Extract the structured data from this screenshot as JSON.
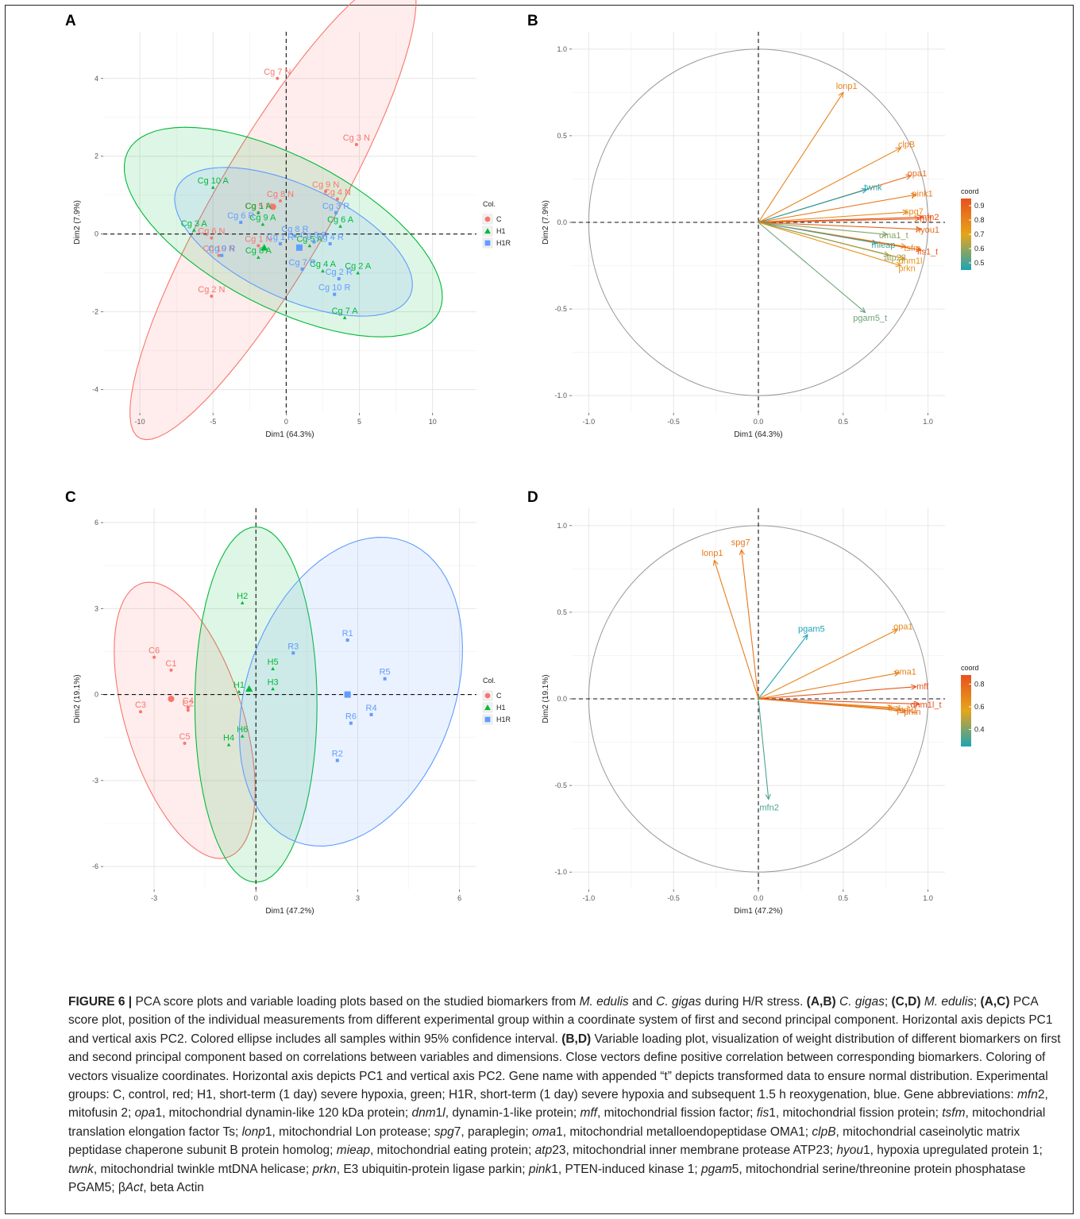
{
  "chart_data": [
    {
      "panel": "A",
      "type": "scatter",
      "xlabel": "Dim1 (64.3%)",
      "ylabel": "Dim2 (7.9%)",
      "xlim": [
        -12.5,
        13
      ],
      "ylim": [
        -4.6,
        5.2
      ],
      "xticks": [
        -10,
        -5,
        0,
        5,
        10
      ],
      "yticks": [
        -4,
        -2,
        0,
        2,
        4
      ],
      "grid": true,
      "legend": {
        "title": "Col.",
        "position": "right",
        "entries": [
          {
            "name": "C",
            "color": "#F8766D",
            "shape": "circle"
          },
          {
            "name": "H1",
            "color": "#00BA38",
            "shape": "triangle"
          },
          {
            "name": "H1R",
            "color": "#619CFF",
            "shape": "square"
          }
        ]
      },
      "series": [
        {
          "name": "C",
          "color": "#F8766D",
          "shape": "circle",
          "centroid": [
            -0.9,
            0.7
          ],
          "ellipse": {
            "cx": -0.9,
            "cy": 0.7,
            "rx": 11.2,
            "ry": 2.45,
            "angle": 30
          },
          "points": [
            {
              "label": "Cg 7 N",
              "x": -0.6,
              "y": 4.0
            },
            {
              "label": "Cg 3 N",
              "x": 4.8,
              "y": 2.3
            },
            {
              "label": "Cg 9 N",
              "x": 2.7,
              "y": 1.1
            },
            {
              "label": "Cg 8 N",
              "x": -0.4,
              "y": 0.85
            },
            {
              "label": "Cg 5 N",
              "x": -1.9,
              "y": 0.55
            },
            {
              "label": "Cg 4 N",
              "x": 3.5,
              "y": 0.9
            },
            {
              "label": "Cg 6 N",
              "x": -5.1,
              "y": -0.1
            },
            {
              "label": "Cg 1 N",
              "x": -1.9,
              "y": -0.3
            },
            {
              "label": "Cg 10 N",
              "x": -4.6,
              "y": -0.55
            },
            {
              "label": "Cg 2 N",
              "x": -5.1,
              "y": -1.6
            }
          ]
        },
        {
          "name": "H1",
          "color": "#00BA38",
          "shape": "triangle",
          "centroid": [
            -1.5,
            -0.35
          ],
          "ellipse": {
            "cx": -0.2,
            "cy": 0.05,
            "rx": 11.0,
            "ry": 2.1,
            "angle": -9
          },
          "points": [
            {
              "label": "Cg 10 A",
              "x": -5.0,
              "y": 1.2
            },
            {
              "label": "Cg 1 A",
              "x": -1.9,
              "y": 0.55
            },
            {
              "label": "Cg 3 A",
              "x": -6.3,
              "y": 0.1
            },
            {
              "label": "Cg 9 A",
              "x": -1.6,
              "y": 0.25
            },
            {
              "label": "Cg 8 A",
              "x": -1.9,
              "y": -0.6
            },
            {
              "label": "Cg 5 A",
              "x": 1.6,
              "y": -0.3
            },
            {
              "label": "Cg 6 A",
              "x": 3.7,
              "y": 0.2
            },
            {
              "label": "Cg 4 A",
              "x": 2.5,
              "y": -0.95
            },
            {
              "label": "Cg 2 A",
              "x": 4.9,
              "y": -1.0
            },
            {
              "label": "Cg 7 A",
              "x": 4.0,
              "y": -2.15
            }
          ]
        },
        {
          "name": "H1R",
          "color": "#619CFF",
          "shape": "square",
          "centroid": [
            0.9,
            -0.35
          ],
          "ellipse": {
            "cx": 0.5,
            "cy": -0.2,
            "rx": 8.2,
            "ry": 1.55,
            "angle": -8
          },
          "points": [
            {
              "label": "Cg 6 R",
              "x": -3.1,
              "y": 0.3
            },
            {
              "label": "Cg 8 R",
              "x": 0.6,
              "y": -0.05
            },
            {
              "label": "Cg 3 R",
              "x": 3.4,
              "y": 0.55
            },
            {
              "label": "Cg 9 R",
              "x": -4.4,
              "y": -0.55
            },
            {
              "label": "Cg 1 R",
              "x": -0.4,
              "y": -0.25
            },
            {
              "label": "Cg 5 R",
              "x": 1.9,
              "y": -0.2
            },
            {
              "label": "Cg 4 R",
              "x": 3.0,
              "y": -0.25
            },
            {
              "label": "Cg 7 R",
              "x": 1.1,
              "y": -0.9
            },
            {
              "label": "Cg 2 R",
              "x": 3.6,
              "y": -1.15
            },
            {
              "label": "Cg 10 R",
              "x": 3.3,
              "y": -1.55
            }
          ]
        }
      ]
    },
    {
      "panel": "B",
      "type": "line",
      "subtype": "variable-loading",
      "xlabel": "Dim1 (64.3%)",
      "ylabel": "Dim2 (7.9%)",
      "xlim": [
        -1.1,
        1.1
      ],
      "ylim": [
        -1.1,
        1.1
      ],
      "xticks": [
        -1.0,
        -0.5,
        0.0,
        0.5,
        1.0
      ],
      "yticks": [
        -1.0,
        -0.5,
        0.0,
        0.5,
        1.0
      ],
      "legend": {
        "title": "coord",
        "position": "right",
        "ticks": [
          0.9,
          0.8,
          0.7,
          0.6,
          0.5
        ],
        "range": [
          0.45,
          0.95
        ],
        "colors": [
          "#e8511e",
          "#e6a51a",
          "#1fa3b4"
        ]
      },
      "vectors": [
        {
          "label": "lonp1",
          "x": 0.5,
          "y": 0.75,
          "coord": 0.8
        },
        {
          "label": "clpB",
          "x": 0.84,
          "y": 0.43,
          "coord": 0.8
        },
        {
          "label": "opa1",
          "x": 0.9,
          "y": 0.27,
          "coord": 0.87
        },
        {
          "label": "twnk",
          "x": 0.64,
          "y": 0.19,
          "coord": 0.45
        },
        {
          "label": "pink1",
          "x": 0.93,
          "y": 0.16,
          "coord": 0.82
        },
        {
          "label": "spg7",
          "x": 0.88,
          "y": 0.06,
          "coord": 0.78
        },
        {
          "label": "mff",
          "x": 0.95,
          "y": 0.02,
          "coord": 0.9
        },
        {
          "label": "mfn2",
          "x": 0.97,
          "y": 0.03,
          "coord": 0.95
        },
        {
          "label": "hyou1",
          "x": 0.96,
          "y": -0.04,
          "coord": 0.88
        },
        {
          "label": "oma1_t",
          "x": 0.76,
          "y": -0.07,
          "coord": 0.58
        },
        {
          "label": "tsfm",
          "x": 0.87,
          "y": -0.14,
          "coord": 0.78
        },
        {
          "label": "fis1_t",
          "x": 0.96,
          "y": -0.16,
          "coord": 0.92
        },
        {
          "label": "mieap",
          "x": 0.7,
          "y": -0.12,
          "coord": 0.5
        },
        {
          "label": "dnm1l",
          "x": 0.86,
          "y": -0.21,
          "coord": 0.76
        },
        {
          "label": "atp23",
          "x": 0.77,
          "y": -0.19,
          "coord": 0.6
        },
        {
          "label": "prkn",
          "x": 0.84,
          "y": -0.25,
          "coord": 0.75
        },
        {
          "label": "pgam5_t",
          "x": 0.63,
          "y": -0.52,
          "coord": 0.55
        }
      ]
    },
    {
      "panel": "C",
      "type": "scatter",
      "xlabel": "Dim1 (47.2%)",
      "ylabel": "Dim2 (19.1%)",
      "xlim": [
        -4.5,
        6.5
      ],
      "ylim": [
        -6.8,
        6.5
      ],
      "xticks": [
        -3,
        0,
        3,
        6
      ],
      "yticks": [
        -6,
        -3,
        0,
        3,
        6
      ],
      "grid": true,
      "legend": {
        "title": "Col.",
        "position": "right",
        "entries": [
          {
            "name": "C",
            "color": "#F8766D",
            "shape": "circle"
          },
          {
            "name": "H1",
            "color": "#00BA38",
            "shape": "triangle"
          },
          {
            "name": "H1R",
            "color": "#619CFF",
            "shape": "square"
          }
        ]
      },
      "series": [
        {
          "name": "C",
          "color": "#F8766D",
          "shape": "circle",
          "centroid": [
            -2.5,
            -0.15
          ],
          "ellipse": {
            "cx": -2.1,
            "cy": -0.9,
            "rx": 1.75,
            "ry": 4.95,
            "angle": 14
          },
          "points": [
            {
              "label": "C6",
              "x": -3.0,
              "y": 1.3
            },
            {
              "label": "C1",
              "x": -2.5,
              "y": 0.85
            },
            {
              "label": "C4",
              "x": -2.0,
              "y": -0.45
            },
            {
              "label": "C2",
              "x": -2.0,
              "y": -0.55
            },
            {
              "label": "C3",
              "x": -3.4,
              "y": -0.6
            },
            {
              "label": "C5",
              "x": -2.1,
              "y": -1.7
            }
          ]
        },
        {
          "name": "H1",
          "color": "#00BA38",
          "shape": "triangle",
          "centroid": [
            -0.2,
            0.2
          ],
          "ellipse": {
            "cx": 0.0,
            "cy": -0.35,
            "rx": 1.8,
            "ry": 6.2,
            "angle": 0
          },
          "points": [
            {
              "label": "H2",
              "x": -0.4,
              "y": 3.2
            },
            {
              "label": "H5",
              "x": 0.5,
              "y": 0.9
            },
            {
              "label": "H3",
              "x": 0.5,
              "y": 0.2
            },
            {
              "label": "H1",
              "x": -0.5,
              "y": 0.1
            },
            {
              "label": "H6",
              "x": -0.4,
              "y": -1.45
            },
            {
              "label": "H4",
              "x": -0.8,
              "y": -1.75
            }
          ]
        },
        {
          "name": "H1R",
          "color": "#619CFF",
          "shape": "square",
          "centroid": [
            2.7,
            0.0
          ],
          "ellipse": {
            "cx": 2.8,
            "cy": 0.1,
            "rx": 3.1,
            "ry": 5.5,
            "angle": -14
          },
          "points": [
            {
              "label": "R3",
              "x": 1.1,
              "y": 1.45
            },
            {
              "label": "R1",
              "x": 2.7,
              "y": 1.9
            },
            {
              "label": "R5",
              "x": 3.8,
              "y": 0.55
            },
            {
              "label": "R4",
              "x": 3.4,
              "y": -0.7
            },
            {
              "label": "R6",
              "x": 2.8,
              "y": -1.0
            },
            {
              "label": "R2",
              "x": 2.4,
              "y": -2.3
            }
          ]
        }
      ]
    },
    {
      "panel": "D",
      "type": "line",
      "subtype": "variable-loading",
      "xlabel": "Dim1 (47.2%)",
      "ylabel": "Dim2 (19.1%)",
      "xlim": [
        -1.1,
        1.1
      ],
      "ylim": [
        -1.1,
        1.1
      ],
      "xticks": [
        -1.0,
        -0.5,
        0.0,
        0.5,
        1.0
      ],
      "yticks": [
        -1.0,
        -0.5,
        0.0,
        0.5,
        1.0
      ],
      "legend": {
        "title": "coord",
        "position": "right",
        "ticks": [
          0.8,
          0.6,
          0.4
        ],
        "range": [
          0.25,
          0.88
        ],
        "colors": [
          "#e8511e",
          "#e6a51a",
          "#1fa3b4"
        ]
      },
      "vectors": [
        {
          "label": "lonp1",
          "x": -0.26,
          "y": 0.8,
          "coord": 0.72
        },
        {
          "label": "spg7",
          "x": -0.1,
          "y": 0.86,
          "coord": 0.74
        },
        {
          "label": "pgam5",
          "x": 0.29,
          "y": 0.37,
          "coord": 0.22
        },
        {
          "label": "opa1",
          "x": 0.82,
          "y": 0.4,
          "coord": 0.68
        },
        {
          "label": "oma1",
          "x": 0.83,
          "y": 0.15,
          "coord": 0.7
        },
        {
          "label": "mff",
          "x": 0.93,
          "y": 0.07,
          "coord": 0.86
        },
        {
          "label": "dnm1l_t",
          "x": 0.95,
          "y": -0.03,
          "coord": 0.88
        },
        {
          "label": "fis1_t",
          "x": 0.79,
          "y": -0.05,
          "coord": 0.66
        },
        {
          "label": "pink1",
          "x": 0.84,
          "y": -0.06,
          "coord": 0.72
        },
        {
          "label": "prkn",
          "x": 0.87,
          "y": -0.07,
          "coord": 0.76
        },
        {
          "label": "mfn2",
          "x": 0.06,
          "y": -0.58,
          "coord": 0.32
        }
      ]
    }
  ],
  "caption": {
    "runs": [
      {
        "t": "FIGURE 6 |",
        "b": true
      },
      {
        "t": " PCA score plots and variable loading plots based on the studied biomarkers from "
      },
      {
        "t": "M. edulis",
        "i": true
      },
      {
        "t": " and "
      },
      {
        "t": "C. gigas",
        "i": true
      },
      {
        "t": " during H/R stress. "
      },
      {
        "t": "(A,B)",
        "b": true
      },
      {
        "t": " "
      },
      {
        "t": "C. gigas",
        "i": true
      },
      {
        "t": "; "
      },
      {
        "t": "(C,D)",
        "b": true
      },
      {
        "t": " "
      },
      {
        "t": "M. edulis",
        "i": true
      },
      {
        "t": "; "
      },
      {
        "t": "(A,C)",
        "b": true
      },
      {
        "t": " PCA score plot, position of the individual measurements from different experimental group within a coordinate system of first and second principal component. Horizontal axis depicts PC1 and vertical axis PC2. Colored ellipse includes all samples within 95% confidence interval. "
      },
      {
        "t": "(B,D)",
        "b": true
      },
      {
        "t": " Variable loading plot, visualization of weight distribution of different biomarkers on first and second principal component based on correlations between variables and dimensions. Close vectors define positive correlation between corresponding biomarkers. Coloring of vectors visualize coordinates. Horizontal axis depicts PC1 and vertical axis PC2. Gene name with appended “t” depicts transformed data to ensure normal distribution. Experimental groups: C, control, red; H1, short-term (1 day) severe hypoxia, green; H1R, short-term (1 day) severe hypoxia and subsequent 1.5 h reoxygenation, blue. Gene abbreviations: "
      },
      {
        "t": "mfn",
        "i": true
      },
      {
        "t": "2, mitofusin 2; "
      },
      {
        "t": "opa",
        "i": true
      },
      {
        "t": "1, mitochondrial dynamin-like 120 kDa protein; "
      },
      {
        "t": "dnm",
        "i": true
      },
      {
        "t": "1"
      },
      {
        "t": "l",
        "i": true
      },
      {
        "t": ", dynamin-1-like protein; "
      },
      {
        "t": "mff",
        "i": true
      },
      {
        "t": ", mitochondrial fission factor; "
      },
      {
        "t": "fis",
        "i": true
      },
      {
        "t": "1, mitochondrial fission protein; "
      },
      {
        "t": "tsfm",
        "i": true
      },
      {
        "t": ", mitochondrial translation elongation factor Ts; "
      },
      {
        "t": "lonp",
        "i": true
      },
      {
        "t": "1, mitochondrial Lon protease; "
      },
      {
        "t": "spg",
        "i": true
      },
      {
        "t": "7, paraplegin; "
      },
      {
        "t": "oma",
        "i": true
      },
      {
        "t": "1, mitochondrial metalloendopeptidase OMA1; "
      },
      {
        "t": "clpB",
        "i": true
      },
      {
        "t": ", mitochondrial caseinolytic matrix peptidase chaperone subunit B protein homolog; "
      },
      {
        "t": "mieap",
        "i": true
      },
      {
        "t": ", mitochondrial eating protein; "
      },
      {
        "t": "atp",
        "i": true
      },
      {
        "t": "23, mitochondrial inner membrane protease ATP23; "
      },
      {
        "t": "hyou",
        "i": true
      },
      {
        "t": "1, hypoxia upregulated protein 1; "
      },
      {
        "t": "twnk",
        "i": true
      },
      {
        "t": ", mitochondrial twinkle mtDNA helicase; "
      },
      {
        "t": "prkn",
        "i": true
      },
      {
        "t": ", E3 ubiquitin-protein ligase parkin; "
      },
      {
        "t": "pink",
        "i": true
      },
      {
        "t": "1, PTEN-induced kinase 1; "
      },
      {
        "t": "pgam",
        "i": true
      },
      {
        "t": "5, mitochondrial serine/threonine protein phosphatase PGAM5; β"
      },
      {
        "t": "Act",
        "i": true
      },
      {
        "t": ", beta Actin"
      }
    ]
  }
}
